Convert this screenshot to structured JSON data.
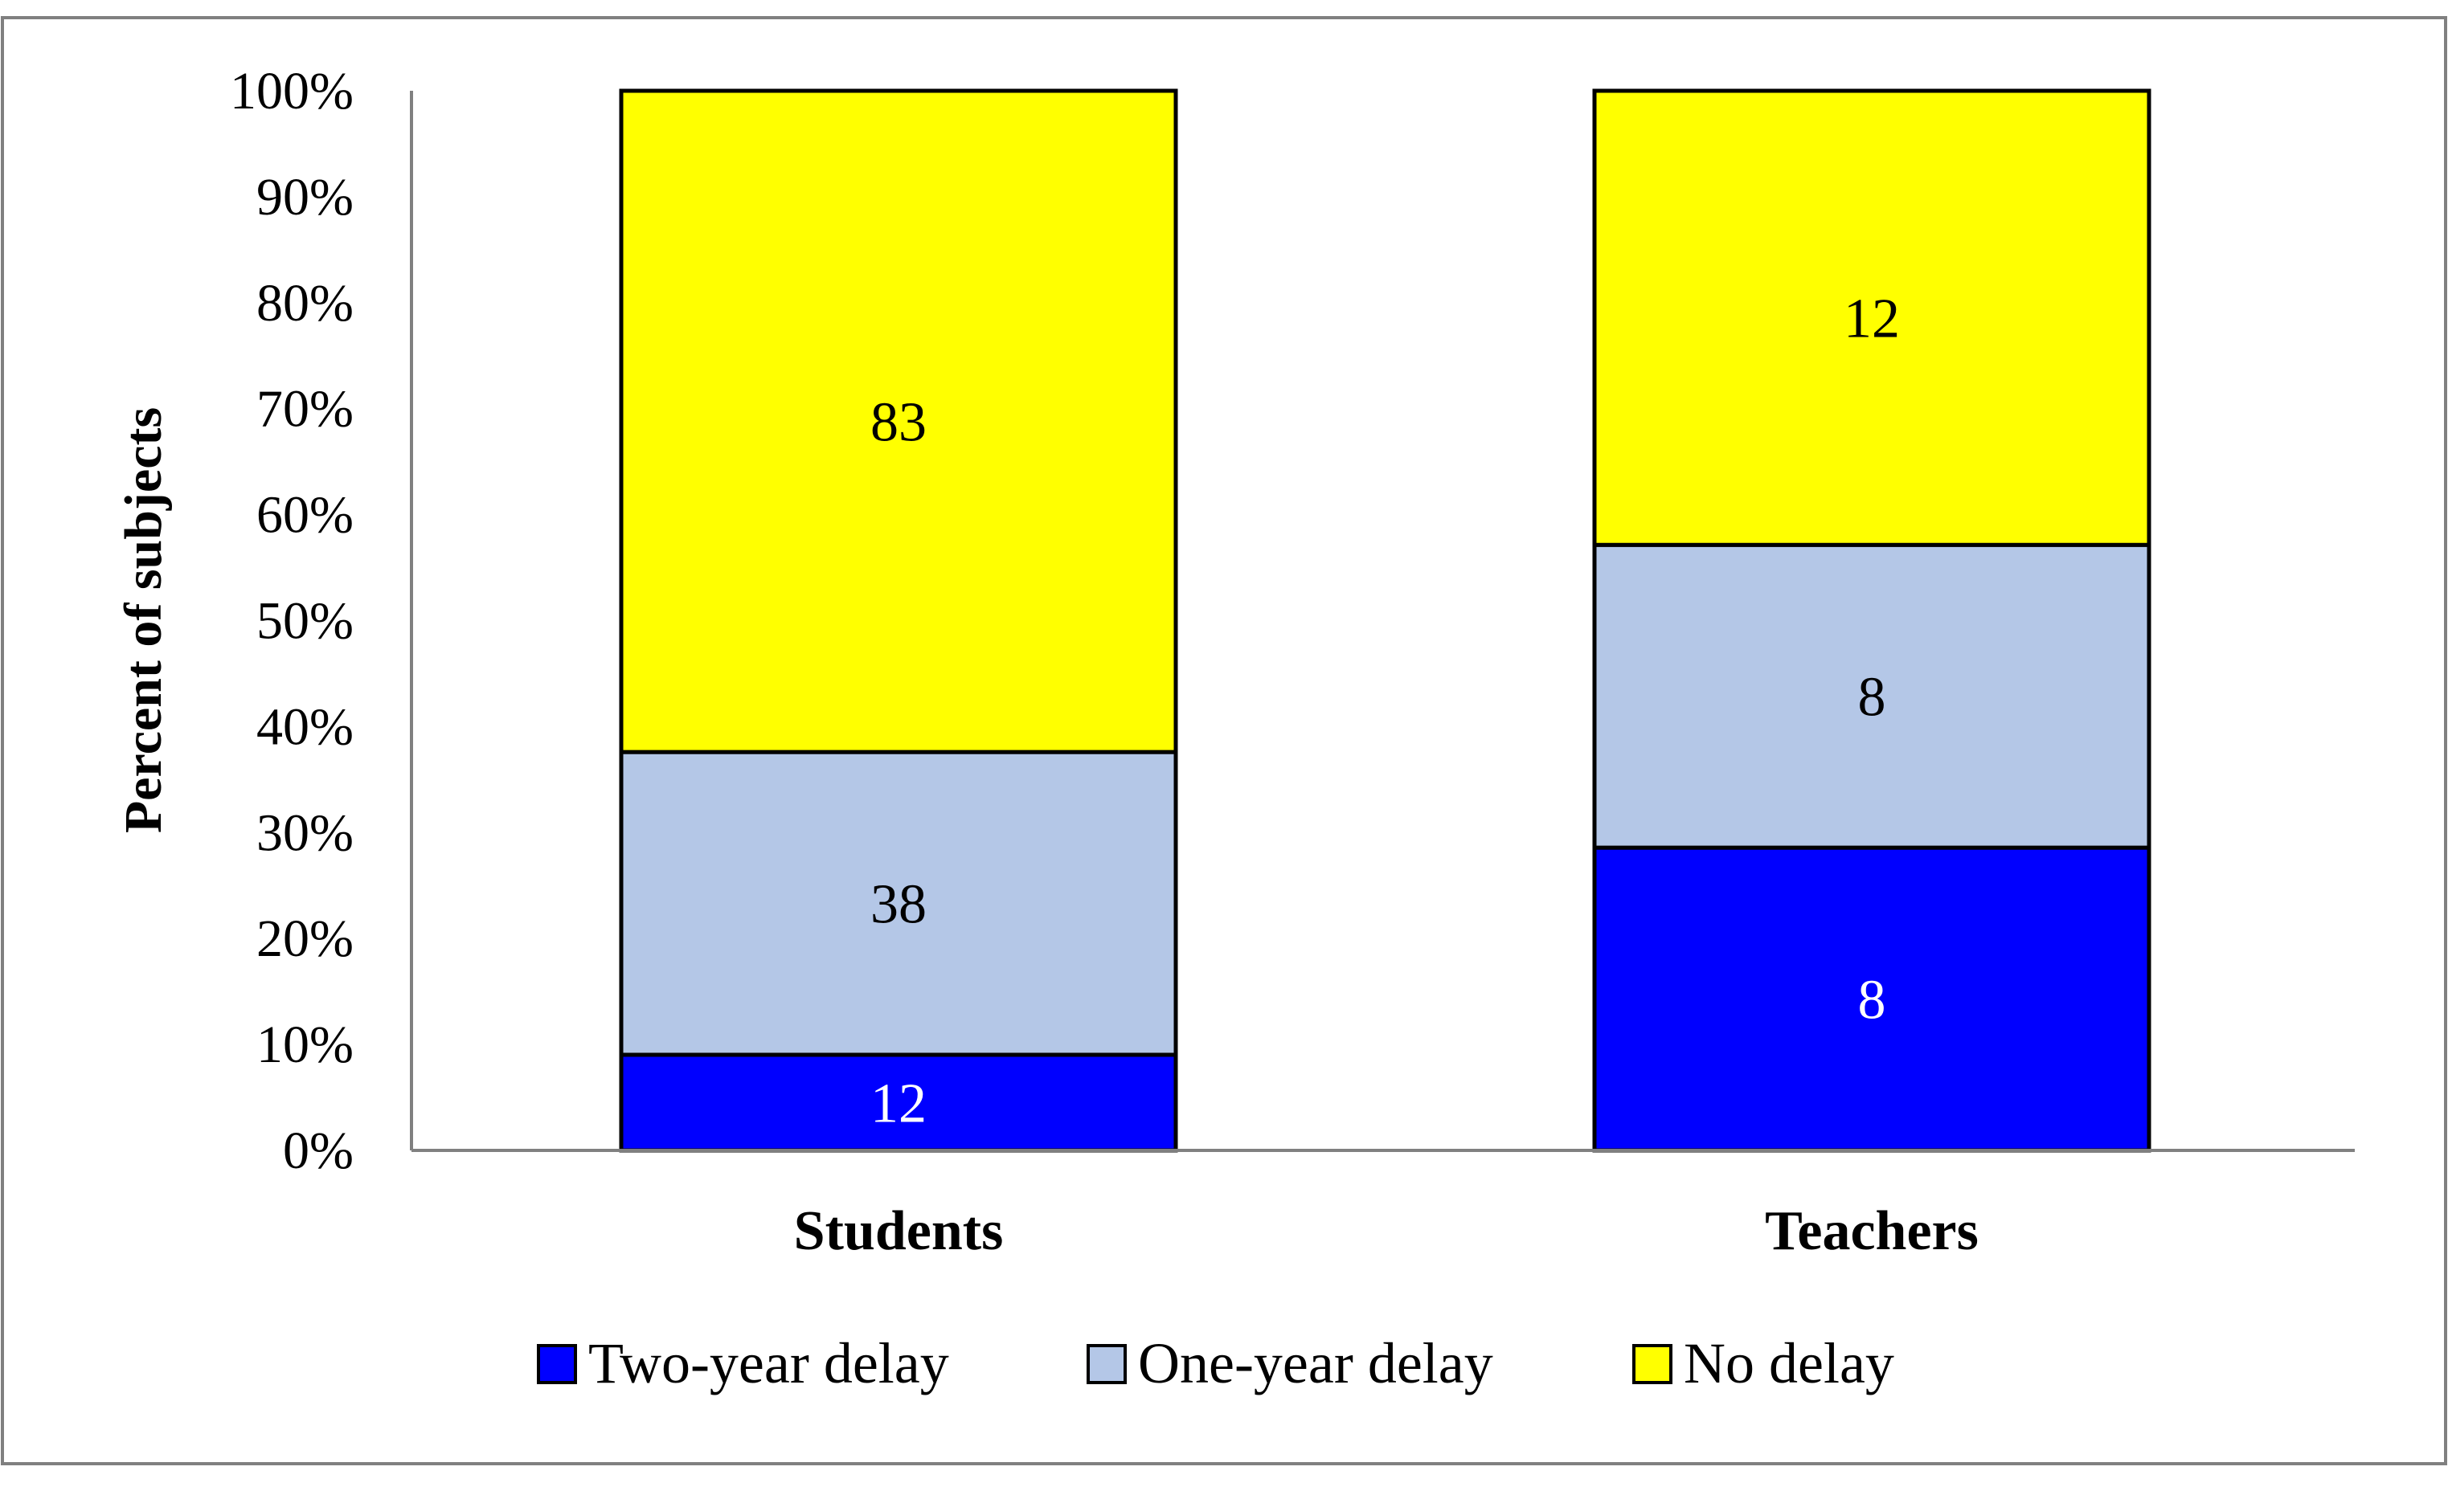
{
  "chart_data": {
    "type": "bar",
    "stacked": true,
    "normalized": true,
    "categories": [
      "Students",
      "Teachers"
    ],
    "series": [
      {
        "name": "Two-year delay",
        "values": [
          12,
          8
        ],
        "color": "#0000ff",
        "label_color": "#ffffff"
      },
      {
        "name": "One-year delay",
        "values": [
          38,
          8
        ],
        "color": "#b4c7e7",
        "label_color": "#000000"
      },
      {
        "name": "No delay",
        "values": [
          83,
          12
        ],
        "color": "#ffff00",
        "label_color": "#000000"
      }
    ],
    "ylabel": "Percent of subjects",
    "ylim": [
      0,
      100
    ],
    "yticks": [
      "0%",
      "10%",
      "20%",
      "30%",
      "40%",
      "50%",
      "60%",
      "70%",
      "80%",
      "90%",
      "100%"
    ],
    "grid": false,
    "legend_position": "bottom"
  }
}
